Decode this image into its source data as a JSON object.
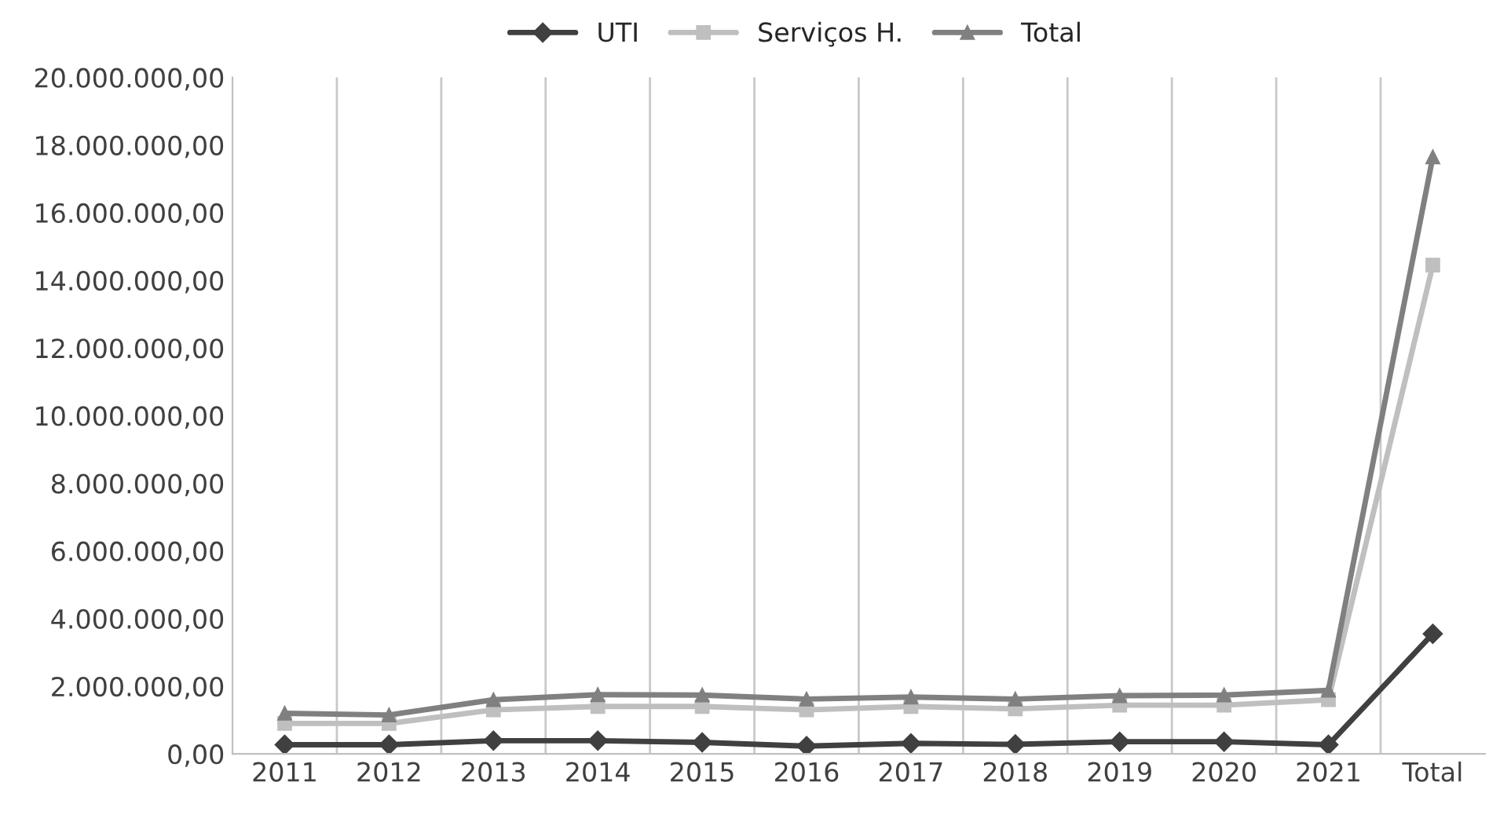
{
  "chart_data": {
    "type": "line",
    "categories": [
      "2011",
      "2012",
      "2013",
      "2014",
      "2015",
      "2016",
      "2017",
      "2018",
      "2019",
      "2020",
      "2021",
      "Total"
    ],
    "series": [
      {
        "name": "UTI",
        "color": "#404040",
        "marker": "diamond",
        "values": [
          270000,
          270000,
          390000,
          390000,
          340000,
          230000,
          310000,
          280000,
          360000,
          360000,
          270000,
          3550000
        ]
      },
      {
        "name": "Serviços H.",
        "color": "#bfbfbf",
        "marker": "square",
        "values": [
          900000,
          900000,
          1300000,
          1400000,
          1400000,
          1300000,
          1400000,
          1330000,
          1440000,
          1440000,
          1600000,
          14450000
        ]
      },
      {
        "name": "Total",
        "color": "#808080",
        "marker": "triangle",
        "values": [
          1200000,
          1150000,
          1600000,
          1750000,
          1740000,
          1620000,
          1680000,
          1620000,
          1720000,
          1740000,
          1880000,
          17650000
        ]
      }
    ],
    "ylim": [
      0,
      20000000
    ],
    "yticks": [
      {
        "value": 0,
        "label": "0,00"
      },
      {
        "value": 2000000,
        "label": "2.000.000,00"
      },
      {
        "value": 4000000,
        "label": "4.000.000,00"
      },
      {
        "value": 6000000,
        "label": "6.000.000,00"
      },
      {
        "value": 8000000,
        "label": "8.000.000,00"
      },
      {
        "value": 10000000,
        "label": "10.000.000,00"
      },
      {
        "value": 12000000,
        "label": "12.000.000,00"
      },
      {
        "value": 14000000,
        "label": "14.000.000,00"
      },
      {
        "value": 16000000,
        "label": "16.000.000,00"
      },
      {
        "value": 18000000,
        "label": "18.000.000,00"
      },
      {
        "value": 20000000,
        "label": "20.000.000,00"
      }
    ],
    "grid": "x",
    "legend": "top",
    "line_style": "solid"
  }
}
